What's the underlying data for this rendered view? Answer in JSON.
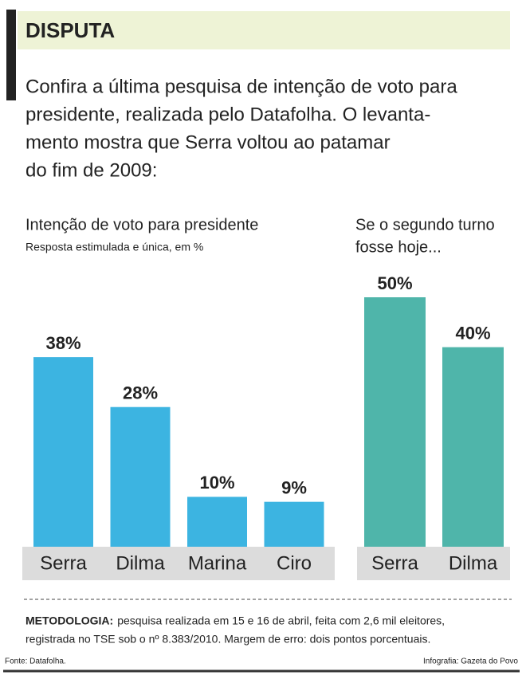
{
  "header": {
    "title": "DISPUTA"
  },
  "intro": {
    "lines": [
      "Confira a última pesquisa de intenção de voto para",
      "presidente, realizada pelo Datafolha. O levanta-",
      "mento mostra que Serra voltou ao patamar",
      "do fim de 2009:"
    ]
  },
  "chart_data": [
    {
      "type": "bar",
      "title": "Intenção de voto para presidente",
      "subtitle": "Resposta estimulada e única, em %",
      "categories": [
        "Serra",
        "Dilma",
        "Marina",
        "Ciro"
      ],
      "values": [
        38,
        28,
        10,
        9
      ],
      "value_labels": [
        "38%",
        "28%",
        "10%",
        "9%"
      ],
      "color": "#3cb4e1"
    },
    {
      "type": "bar",
      "title": [
        "Se o segundo turno",
        "fosse hoje..."
      ],
      "categories": [
        "Serra",
        "Dilma"
      ],
      "values": [
        50,
        40
      ],
      "value_labels": [
        "50%",
        "40%"
      ],
      "color": "#4fb5aa"
    }
  ],
  "methodology": {
    "label": "METODOLOGIA:",
    "lines": [
      "pesquisa realizada em 15 e 16 de abril, feita com 2,6 mil eleitores,",
      "registrada no TSE sob o nº 8.383/2010. Margem de erro: dois pontos porcentuais."
    ]
  },
  "footer": {
    "source": "Fonte: Datafolha.",
    "credit": "Infografia: Gazeta do Povo"
  }
}
